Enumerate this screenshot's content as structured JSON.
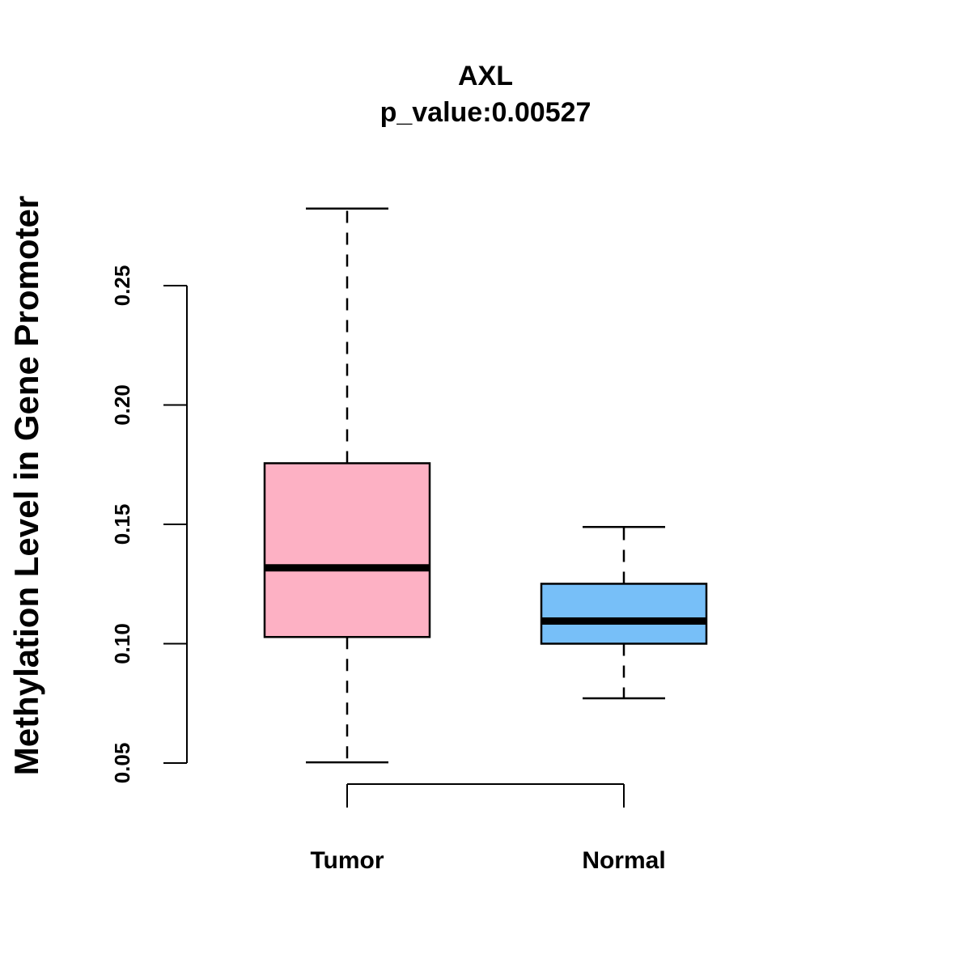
{
  "chart_data": {
    "type": "box",
    "title": "AXL",
    "subtitle": "p_value:0.00527",
    "xlabel": "",
    "ylabel": "Methylation Level in Gene Promoter",
    "ylim": [
      0.05,
      0.25
    ],
    "yticks": [
      0.05,
      0.1,
      0.15,
      0.2,
      0.25
    ],
    "ytick_labels": [
      "0.05",
      "0.10",
      "0.15",
      "0.20",
      "0.25"
    ],
    "categories": [
      "Tumor",
      "Normal"
    ],
    "series": [
      {
        "name": "Tumor",
        "whisker_low": 0.0503,
        "q1": 0.1028,
        "median": 0.1318,
        "q3": 0.1756,
        "whisker_high": 0.2823,
        "color": "#FDB1C4"
      },
      {
        "name": "Normal",
        "whisker_low": 0.0771,
        "q1": 0.1,
        "median": 0.1095,
        "q3": 0.1251,
        "whisker_high": 0.1489,
        "color": "#77BFF8"
      }
    ],
    "grid": false,
    "legend": "none"
  }
}
